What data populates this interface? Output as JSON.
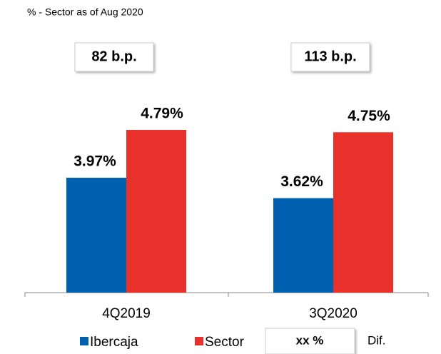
{
  "chart_data": {
    "type": "bar",
    "subtitle": "% - Sector as of Aug 2020",
    "categories": [
      "4Q2019",
      "3Q2020"
    ],
    "series": [
      {
        "name": "Ibercaja",
        "color": "#0060b0",
        "values": [
          3.97,
          3.62
        ],
        "value_labels": [
          "3.97%",
          "3.62%"
        ]
      },
      {
        "name": "Sector",
        "color": "#e8312b",
        "values": [
          4.79,
          4.75
        ],
        "value_labels": [
          "4.79%",
          "4.75%"
        ]
      }
    ],
    "annotations": [
      "82 b.p.",
      "113 b.p."
    ],
    "legend_box": "xx %",
    "legend_note": "Dif.",
    "ylim": [
      2,
      5.5
    ]
  }
}
